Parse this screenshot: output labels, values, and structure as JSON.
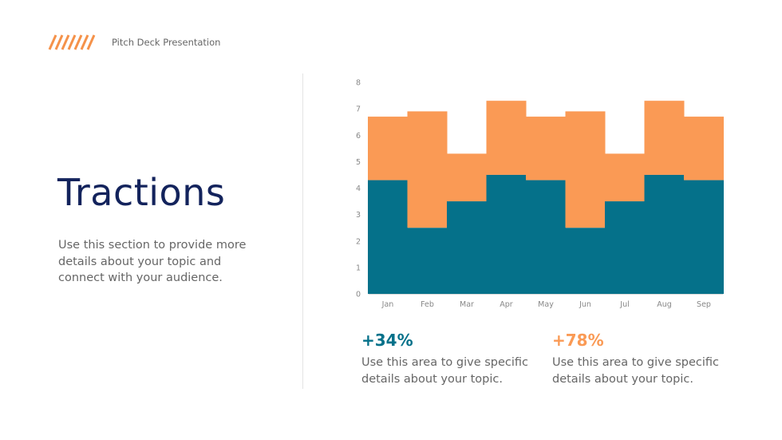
{
  "header": {
    "subtitle": "Pitch Deck Presentation",
    "logo_icon": "diagonal-stripes-icon"
  },
  "title": "Tractions",
  "description": "Use this section to provide more details about your topic and connect with your audience.",
  "colors": {
    "teal": "#05718a",
    "orange": "#fa9a55",
    "title": "#13235c"
  },
  "stats": [
    {
      "value": "+34%",
      "text": "Use this area to give specific details about your topic.",
      "color": "#05718a"
    },
    {
      "value": "+78%",
      "text": "Use this area to give specific details about your topic.",
      "color": "#fa9a55"
    }
  ],
  "chart_data": {
    "type": "bar",
    "stacked": true,
    "categories": [
      "Jan",
      "Feb",
      "Mar",
      "Apr",
      "May",
      "Jun",
      "Jul",
      "Aug",
      "Sep"
    ],
    "series": [
      {
        "values": [
          4.3,
          2.5,
          3.5,
          4.5,
          4.3,
          2.5,
          3.5,
          4.5,
          4.3
        ],
        "color": "#05718a"
      },
      {
        "values": [
          2.4,
          4.4,
          1.8,
          2.8,
          2.4,
          4.4,
          1.8,
          2.8,
          2.4
        ],
        "color": "#fa9a55"
      }
    ],
    "ylim": [
      0,
      8
    ],
    "yticks": [
      "0",
      "1",
      "2",
      "3",
      "4",
      "5",
      "6",
      "7",
      "8"
    ],
    "grid": false,
    "xlabel": "",
    "ylabel": ""
  }
}
